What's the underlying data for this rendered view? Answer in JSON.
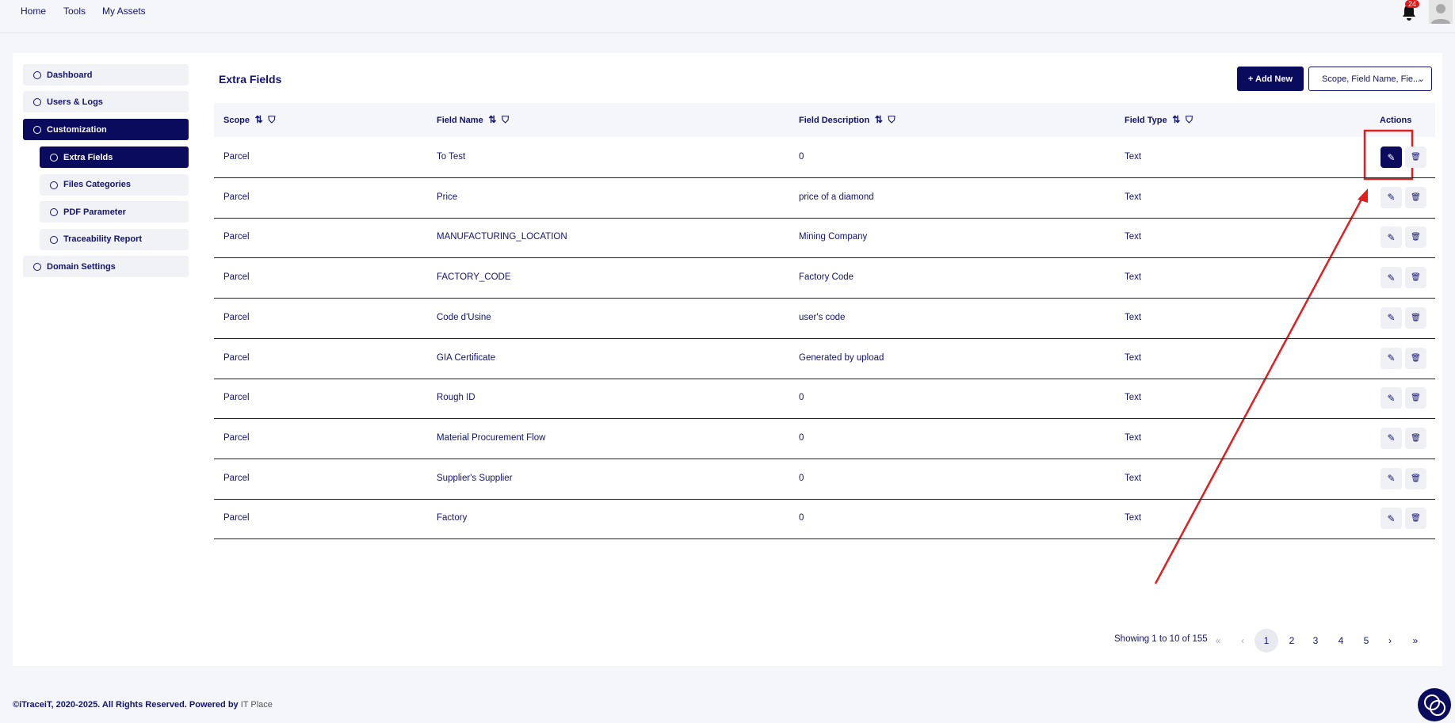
{
  "nav": {
    "links": [
      "Home",
      "Tools",
      "My Assets"
    ],
    "notifications": "24"
  },
  "sidebar": {
    "items": [
      "Dashboard",
      "Users & Logs",
      "Customization"
    ],
    "subitems": [
      "Extra Fields",
      "Files Categories",
      "PDF Parameter",
      "Traceability Report"
    ],
    "last": "Domain Settings"
  },
  "header": {
    "title": "Extra Fields",
    "add_button": "+ Add New",
    "search_dropdown": "Scope, Field Name, Fie..."
  },
  "table": {
    "columns": [
      "Scope",
      "Field Name",
      "Field Description",
      "Field Type",
      "Actions"
    ],
    "rows": [
      [
        "Parcel",
        "To Test",
        "0",
        "Text"
      ],
      [
        "Parcel",
        "Price",
        "price of a diamond",
        "Text"
      ],
      [
        "Parcel",
        "MANUFACTURING_LOCATION",
        "Mining Company",
        "Text"
      ],
      [
        "Parcel",
        "FACTORY_CODE",
        "Factory Code",
        "Text"
      ],
      [
        "Parcel",
        "Code d'Usine",
        "user's code",
        "Text"
      ],
      [
        "Parcel",
        "GIA Certificate",
        "Generated by upload",
        "Text"
      ],
      [
        "Parcel",
        "Rough ID",
        "0",
        "Text"
      ],
      [
        "Parcel",
        "Material Procurement Flow",
        "0",
        "Text"
      ],
      [
        "Parcel",
        "Supplier's Supplier",
        "0",
        "Text"
      ],
      [
        "Parcel",
        "Factory",
        "0",
        "Text"
      ]
    ]
  },
  "pagination": {
    "summary": "Showing 1 to 10 of 155",
    "controls": [
      "«",
      "‹",
      "1",
      "2",
      "3",
      "4",
      "5",
      "›",
      "»"
    ]
  },
  "footer": {
    "text": "©iTraceiT, 2020-2025. All Rights Reserved. Powered by",
    "link": "IT Place"
  }
}
